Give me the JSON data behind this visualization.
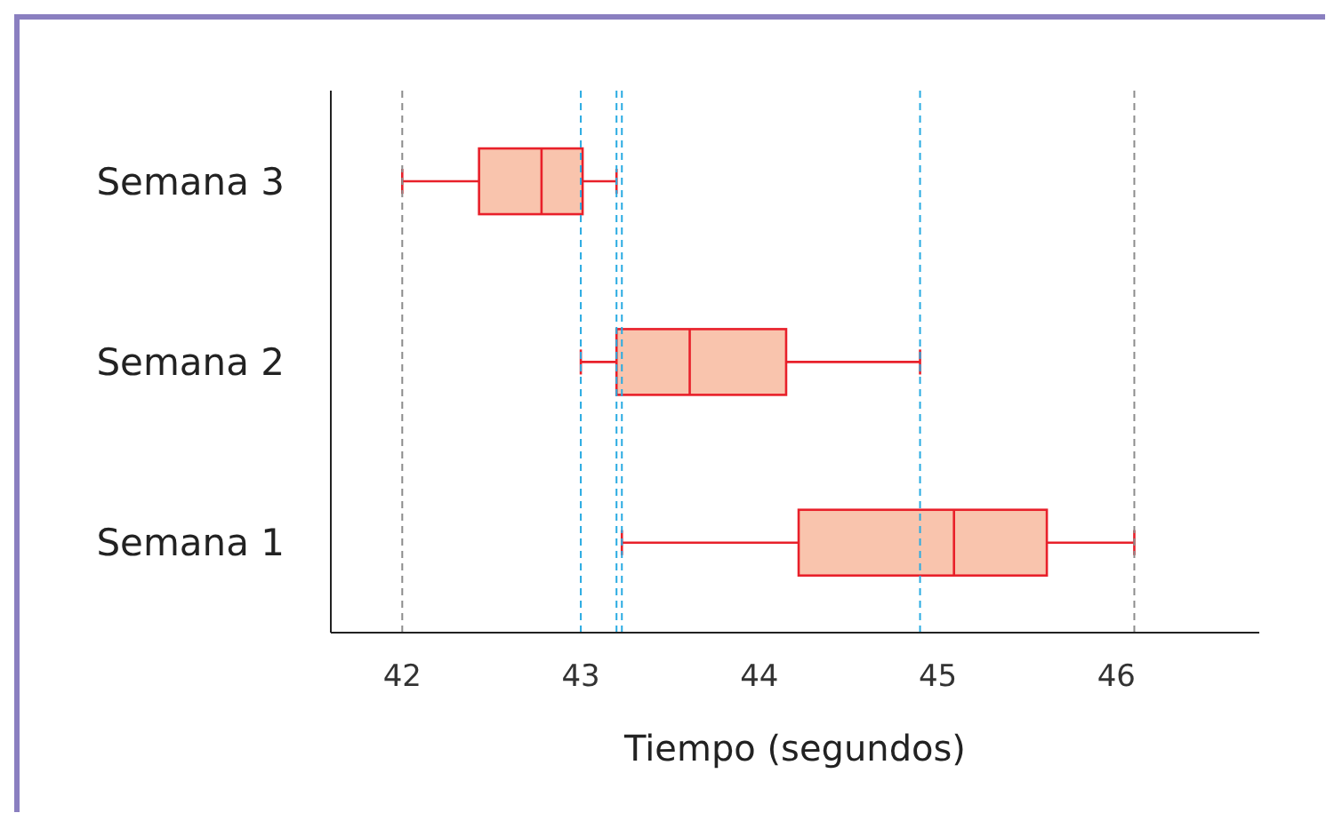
{
  "chart_data": {
    "type": "box",
    "xlabel": "Tiempo (segundos)",
    "orientation": "horizontal",
    "categories": [
      "Semana 3",
      "Semana 2",
      "Semana 1"
    ],
    "color": "#f9c4ad",
    "boxes": [
      {
        "low": 42.0,
        "q1": 42.43,
        "median": 42.78,
        "q3": 43.01,
        "high": 43.2
      },
      {
        "low": 43.0,
        "q1": 43.2,
        "median": 43.61,
        "q3": 44.15,
        "high": 44.9
      },
      {
        "low": 43.23,
        "q1": 44.22,
        "median": 45.09,
        "q3": 45.61,
        "high": 46.1
      }
    ],
    "xlim": [
      41.6,
      46.8
    ],
    "xticks": [
      42,
      43,
      44,
      45,
      46
    ],
    "grid": false,
    "ref_lines": [
      {
        "axis": "x",
        "value": 42.0,
        "color": "#8c8c8c",
        "line_style": "dashed"
      },
      {
        "axis": "x",
        "value": 43.0,
        "color": "#29abe2",
        "line_style": "dashed"
      },
      {
        "axis": "x",
        "value": 43.2,
        "color": "#29abe2",
        "line_style": "dashed"
      },
      {
        "axis": "x",
        "value": 43.23,
        "color": "#29abe2",
        "line_style": "dashed"
      },
      {
        "axis": "x",
        "value": 44.9,
        "color": "#29abe2",
        "line_style": "dashed"
      },
      {
        "axis": "x",
        "value": 46.1,
        "color": "#8c8c8c",
        "line_style": "dashed"
      }
    ]
  }
}
